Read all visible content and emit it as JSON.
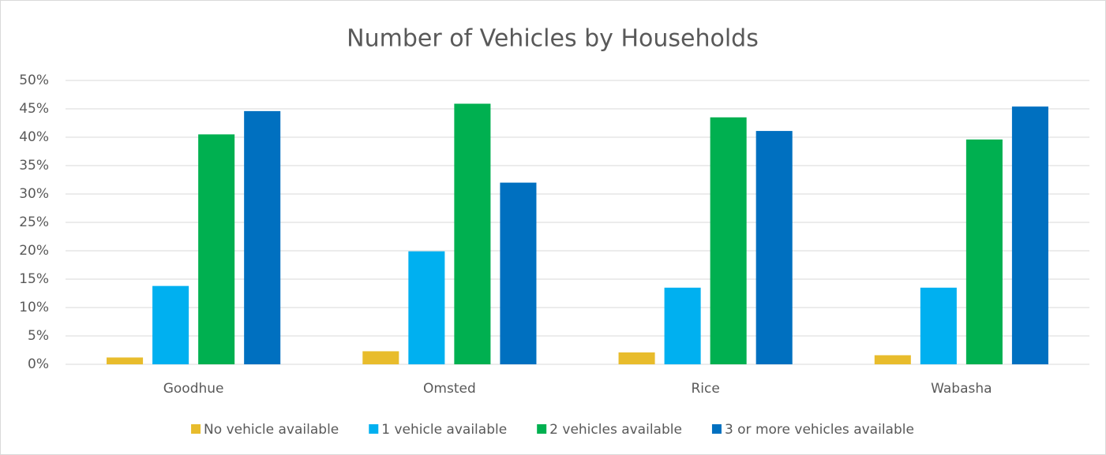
{
  "chart_data": {
    "type": "bar",
    "title": "Number of Vehicles by Households",
    "categories": [
      "Goodhue",
      "Omsted",
      "Rice",
      "Wabasha"
    ],
    "series": [
      {
        "name": "No vehicle available",
        "color": "#e8bc2c",
        "values": [
          1.2,
          2.3,
          2.1,
          1.6
        ]
      },
      {
        "name": "1 vehicle available",
        "color": "#00b0f0",
        "values": [
          13.8,
          19.9,
          13.5,
          13.5
        ]
      },
      {
        "name": "2 vehicles available",
        "color": "#00b050",
        "values": [
          40.5,
          45.9,
          43.5,
          39.6
        ]
      },
      {
        "name": "3 or more vehicles available",
        "color": "#0070c0",
        "values": [
          44.6,
          32.0,
          41.1,
          45.4
        ]
      }
    ],
    "ylim": [
      0,
      50
    ],
    "yticks": [
      {
        "value": 0,
        "label": "0%"
      },
      {
        "value": 5,
        "label": "5%"
      },
      {
        "value": 10,
        "label": "10%"
      },
      {
        "value": 15,
        "label": "15%"
      },
      {
        "value": 20,
        "label": "20%"
      },
      {
        "value": 25,
        "label": "25%"
      },
      {
        "value": 30,
        "label": "30%"
      },
      {
        "value": 35,
        "label": "35%"
      },
      {
        "value": 40,
        "label": "40%"
      },
      {
        "value": 45,
        "label": "45%"
      },
      {
        "value": 50,
        "label": "50%"
      }
    ],
    "grid": true,
    "legend": "bottom"
  }
}
